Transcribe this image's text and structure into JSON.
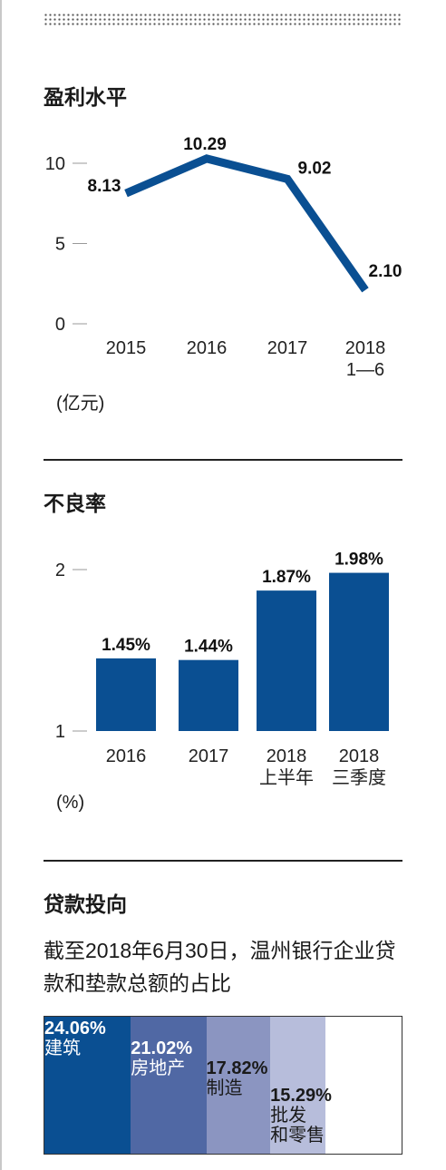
{
  "chart_data": [
    {
      "type": "line",
      "title": "盈利水平",
      "x": [
        "2015",
        "2016",
        "2017",
        "2018\n1—6"
      ],
      "values": [
        8.13,
        10.29,
        9.02,
        2.1
      ],
      "data_labels": [
        "8.13",
        "10.29",
        "9.02",
        "2.10"
      ],
      "ylim": [
        0,
        11
      ],
      "yticks": [
        0,
        5,
        10
      ],
      "unit": "(亿元)",
      "color": "#0a4f92",
      "grid": false
    },
    {
      "type": "bar",
      "title": "不良率",
      "categories": [
        "2016",
        "2017",
        "2018\n上半年",
        "2018\n三季度"
      ],
      "values": [
        1.45,
        1.44,
        1.87,
        1.98
      ],
      "data_labels": [
        "1.45%",
        "1.44%",
        "1.87%",
        "1.98%"
      ],
      "ylim": [
        1,
        2.1
      ],
      "yticks": [
        1,
        2
      ],
      "unit": "(%)",
      "color": "#0a4f92",
      "grid": false
    },
    {
      "type": "bar",
      "stacked": true,
      "title": "贷款投向",
      "subtitle": "截至2018年6月30日，温州银行企业贷款和垫款总额的占比",
      "categories": [
        "建筑",
        "房地产",
        "制造",
        "批发\n和零售"
      ],
      "values": [
        24.06,
        21.02,
        17.82,
        15.29
      ],
      "data_labels": [
        "24.06%",
        "21.02%",
        "17.82%",
        "15.29%"
      ],
      "colors": [
        "#0a4f92",
        "#5068a4",
        "#8b95c1",
        "#b7bddb"
      ]
    }
  ]
}
